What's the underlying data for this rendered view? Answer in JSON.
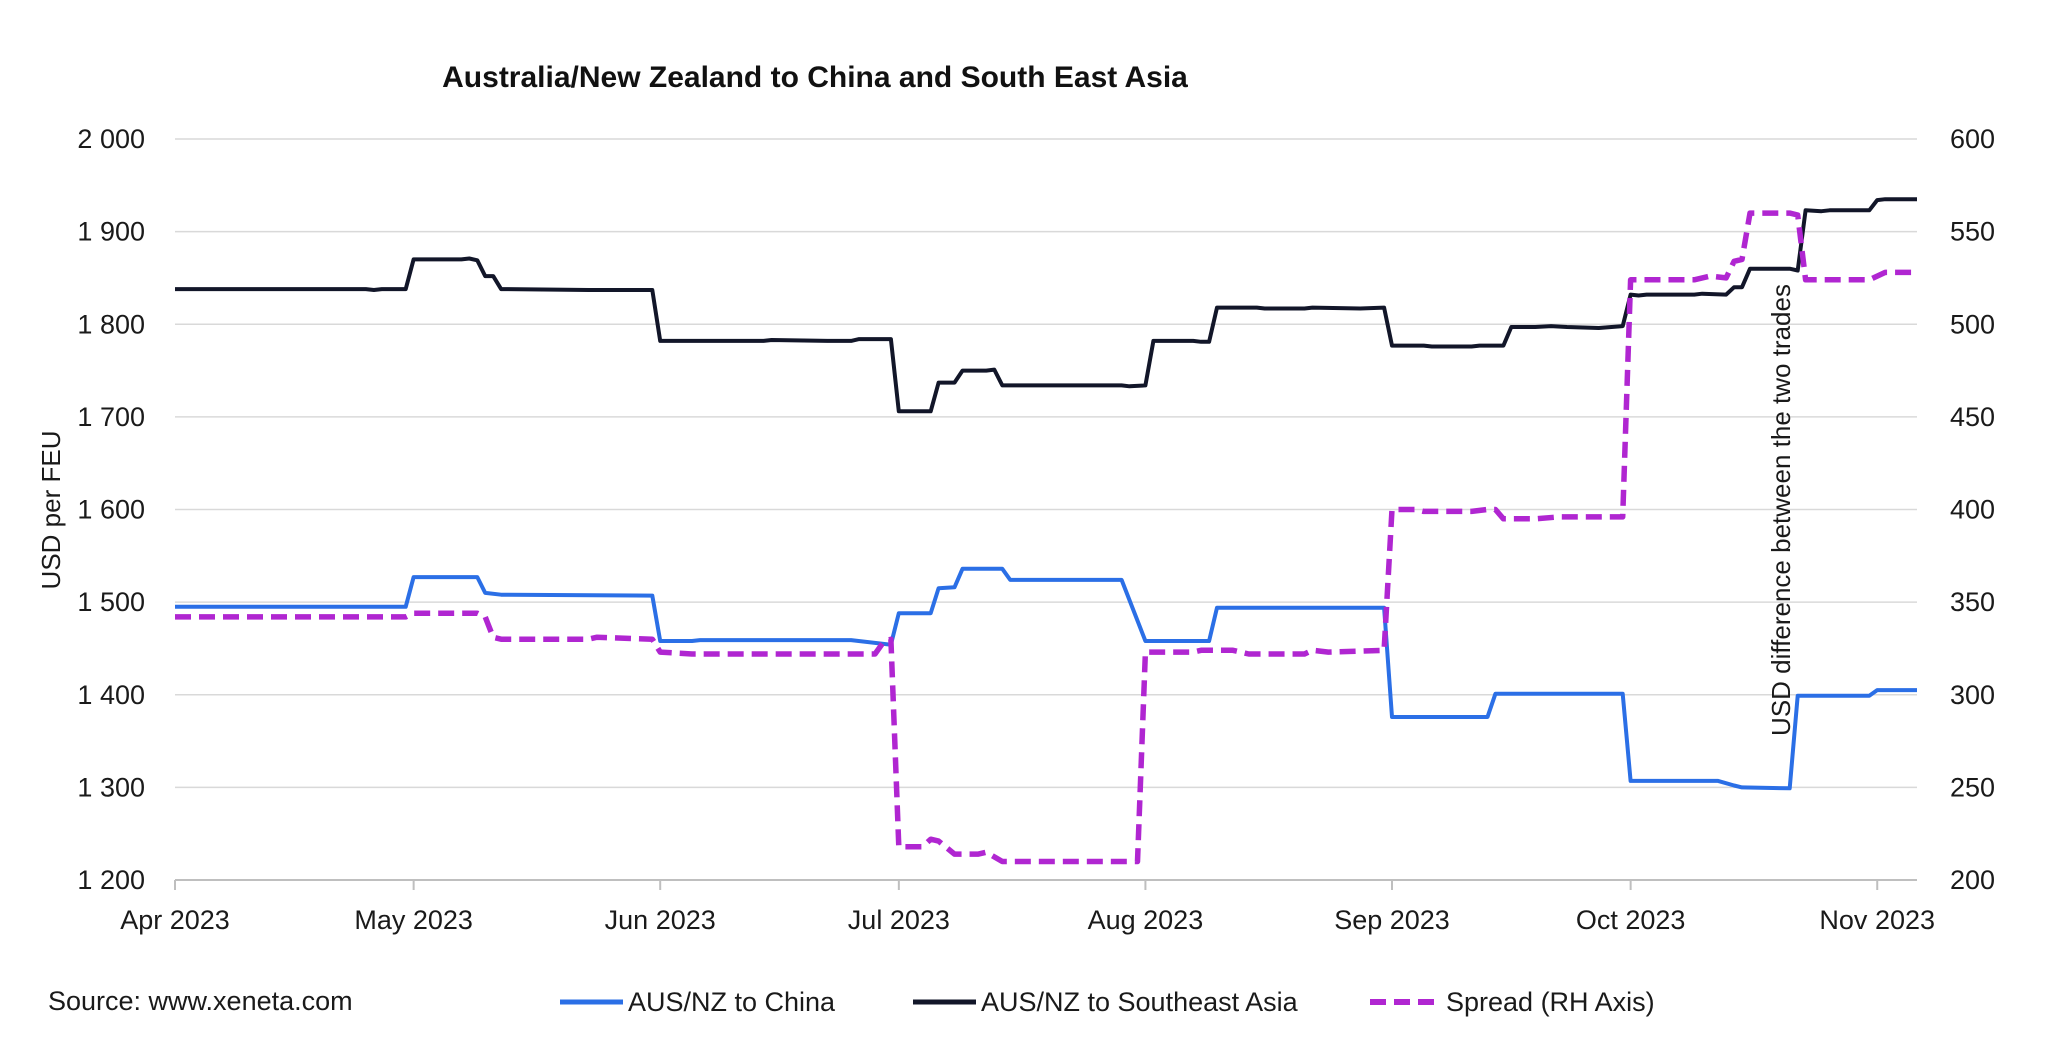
{
  "chart_data": {
    "type": "line",
    "title": "Australia/New Zealand to China and South East Asia",
    "source": "Source: www.xeneta.com",
    "y_left": {
      "label": "USD per FEU",
      "range": [
        1200,
        2000
      ],
      "ticks": [
        1200,
        1300,
        1400,
        1500,
        1600,
        1700,
        1800,
        1900,
        2000
      ],
      "tick_labels": [
        "1 200",
        "1 300",
        "1 400",
        "1 500",
        "1 600",
        "1 700",
        "1 800",
        "1 900",
        "2 000"
      ]
    },
    "y_right": {
      "label": "USD difference between the two trades",
      "range": [
        200,
        600
      ],
      "ticks": [
        200,
        250,
        300,
        350,
        400,
        450,
        500,
        550,
        600
      ],
      "tick_labels": [
        "200",
        "250",
        "300",
        "350",
        "400",
        "450",
        "500",
        "550",
        "600"
      ]
    },
    "x_axis": {
      "range": [
        "2023-04-01",
        "2023-11-06"
      ],
      "ticks": [
        "2023-04-01",
        "2023-05-01",
        "2023-06-01",
        "2023-07-01",
        "2023-08-01",
        "2023-09-01",
        "2023-10-01",
        "2023-11-01"
      ],
      "tick_labels": [
        "Apr 2023",
        "May 2023",
        "Jun 2023",
        "Jul 2023",
        "Aug 2023",
        "Sep 2023",
        "Oct 2023",
        "Nov 2023"
      ]
    },
    "grid": "horizontal",
    "legend_position": "bottom",
    "series": [
      {
        "name": "AUS/NZ to China",
        "axis": "left",
        "color": "#2B6FE6",
        "style": "solid",
        "points": [
          [
            "2023-04-01",
            1495
          ],
          [
            "2023-04-30",
            1495
          ],
          [
            "2023-05-01",
            1527
          ],
          [
            "2023-05-09",
            1527
          ],
          [
            "2023-05-10",
            1510
          ],
          [
            "2023-05-12",
            1508
          ],
          [
            "2023-05-31",
            1507
          ],
          [
            "2023-06-01",
            1458
          ],
          [
            "2023-06-05",
            1458
          ],
          [
            "2023-06-06",
            1459
          ],
          [
            "2023-06-25",
            1459
          ],
          [
            "2023-06-30",
            1454
          ],
          [
            "2023-07-01",
            1488
          ],
          [
            "2023-07-05",
            1488
          ],
          [
            "2023-07-06",
            1515
          ],
          [
            "2023-07-08",
            1516
          ],
          [
            "2023-07-09",
            1536
          ],
          [
            "2023-07-14",
            1536
          ],
          [
            "2023-07-15",
            1524
          ],
          [
            "2023-07-29",
            1524
          ],
          [
            "2023-08-01",
            1458
          ],
          [
            "2023-08-09",
            1458
          ],
          [
            "2023-08-10",
            1494
          ],
          [
            "2023-08-31",
            1494
          ],
          [
            "2023-09-01",
            1376
          ],
          [
            "2023-09-13",
            1376
          ],
          [
            "2023-09-14",
            1401
          ],
          [
            "2023-09-30",
            1401
          ],
          [
            "2023-10-01",
            1307
          ],
          [
            "2023-10-12",
            1307
          ],
          [
            "2023-10-14",
            1302
          ],
          [
            "2023-10-15",
            1300
          ],
          [
            "2023-10-21",
            1299
          ],
          [
            "2023-10-22",
            1399
          ],
          [
            "2023-10-31",
            1399
          ],
          [
            "2023-11-01",
            1405
          ],
          [
            "2023-11-06",
            1405
          ]
        ]
      },
      {
        "name": "AUS/NZ to Southeast Asia",
        "axis": "left",
        "color": "#121629",
        "style": "solid",
        "points": [
          [
            "2023-04-01",
            1838
          ],
          [
            "2023-04-25",
            1838
          ],
          [
            "2023-04-26",
            1837
          ],
          [
            "2023-04-27",
            1838
          ],
          [
            "2023-04-30",
            1838
          ],
          [
            "2023-05-01",
            1870
          ],
          [
            "2023-05-07",
            1870
          ],
          [
            "2023-05-08",
            1871
          ],
          [
            "2023-05-09",
            1869
          ],
          [
            "2023-05-10",
            1852
          ],
          [
            "2023-05-11",
            1852
          ],
          [
            "2023-05-12",
            1838
          ],
          [
            "2023-05-23",
            1837
          ],
          [
            "2023-05-31",
            1837
          ],
          [
            "2023-06-01",
            1782
          ],
          [
            "2023-06-14",
            1782
          ],
          [
            "2023-06-15",
            1783
          ],
          [
            "2023-06-22",
            1782
          ],
          [
            "2023-06-25",
            1782
          ],
          [
            "2023-06-26",
            1784
          ],
          [
            "2023-06-30",
            1784
          ],
          [
            "2023-07-01",
            1706
          ],
          [
            "2023-07-05",
            1706
          ],
          [
            "2023-07-06",
            1737
          ],
          [
            "2023-07-08",
            1737
          ],
          [
            "2023-07-09",
            1750
          ],
          [
            "2023-07-12",
            1750
          ],
          [
            "2023-07-13",
            1751
          ],
          [
            "2023-07-14",
            1734
          ],
          [
            "2023-07-29",
            1734
          ],
          [
            "2023-07-30",
            1733
          ],
          [
            "2023-08-01",
            1734
          ],
          [
            "2023-08-02",
            1782
          ],
          [
            "2023-08-07",
            1782
          ],
          [
            "2023-08-08",
            1781
          ],
          [
            "2023-08-09",
            1781
          ],
          [
            "2023-08-10",
            1818
          ],
          [
            "2023-08-15",
            1818
          ],
          [
            "2023-08-16",
            1817
          ],
          [
            "2023-08-21",
            1817
          ],
          [
            "2023-08-22",
            1818
          ],
          [
            "2023-08-28",
            1817
          ],
          [
            "2023-08-31",
            1818
          ],
          [
            "2023-09-01",
            1777
          ],
          [
            "2023-09-05",
            1777
          ],
          [
            "2023-09-06",
            1776
          ],
          [
            "2023-09-11",
            1776
          ],
          [
            "2023-09-12",
            1777
          ],
          [
            "2023-09-15",
            1777
          ],
          [
            "2023-09-16",
            1797
          ],
          [
            "2023-09-19",
            1797
          ],
          [
            "2023-09-21",
            1798
          ],
          [
            "2023-09-23",
            1797
          ],
          [
            "2023-09-27",
            1796
          ],
          [
            "2023-09-30",
            1798
          ],
          [
            "2023-10-01",
            1832
          ],
          [
            "2023-10-02",
            1831
          ],
          [
            "2023-10-03",
            1832
          ],
          [
            "2023-10-09",
            1832
          ],
          [
            "2023-10-10",
            1833
          ],
          [
            "2023-10-13",
            1832
          ],
          [
            "2023-10-14",
            1840
          ],
          [
            "2023-10-15",
            1840
          ],
          [
            "2023-10-16",
            1860
          ],
          [
            "2023-10-21",
            1860
          ],
          [
            "2023-10-22",
            1858
          ],
          [
            "2023-10-23",
            1923
          ],
          [
            "2023-10-25",
            1922
          ],
          [
            "2023-10-26",
            1923
          ],
          [
            "2023-10-31",
            1923
          ],
          [
            "2023-11-01",
            1934
          ],
          [
            "2023-11-02",
            1935
          ],
          [
            "2023-11-06",
            1935
          ]
        ]
      },
      {
        "name": "Spread (RH Axis)",
        "axis": "right",
        "color": "#B026D1",
        "style": "dashed",
        "points": [
          [
            "2023-04-01",
            342
          ],
          [
            "2023-04-30",
            342
          ],
          [
            "2023-05-01",
            344
          ],
          [
            "2023-05-09",
            344
          ],
          [
            "2023-05-10",
            342
          ],
          [
            "2023-05-11",
            331
          ],
          [
            "2023-05-12",
            330
          ],
          [
            "2023-05-23",
            330
          ],
          [
            "2023-05-24",
            331
          ],
          [
            "2023-05-31",
            330
          ],
          [
            "2023-06-01",
            323
          ],
          [
            "2023-06-05",
            322
          ],
          [
            "2023-06-25",
            322
          ],
          [
            "2023-06-28",
            322
          ],
          [
            "2023-06-29",
            328
          ],
          [
            "2023-06-30",
            330
          ],
          [
            "2023-07-01",
            218
          ],
          [
            "2023-07-04",
            218
          ],
          [
            "2023-07-05",
            222
          ],
          [
            "2023-07-06",
            221
          ],
          [
            "2023-07-08",
            214
          ],
          [
            "2023-07-11",
            214
          ],
          [
            "2023-07-12",
            215
          ],
          [
            "2023-07-14",
            210
          ],
          [
            "2023-07-31",
            210
          ],
          [
            "2023-08-01",
            323
          ],
          [
            "2023-08-07",
            323
          ],
          [
            "2023-08-08",
            324
          ],
          [
            "2023-08-12",
            324
          ],
          [
            "2023-08-14",
            322
          ],
          [
            "2023-08-21",
            322
          ],
          [
            "2023-08-22",
            324
          ],
          [
            "2023-08-24",
            323
          ],
          [
            "2023-08-31",
            324
          ],
          [
            "2023-09-01",
            400
          ],
          [
            "2023-09-04",
            400
          ],
          [
            "2023-09-05",
            399
          ],
          [
            "2023-09-11",
            399
          ],
          [
            "2023-09-13",
            400
          ],
          [
            "2023-09-14",
            400
          ],
          [
            "2023-09-15",
            395
          ],
          [
            "2023-09-19",
            395
          ],
          [
            "2023-09-22",
            396
          ],
          [
            "2023-09-30",
            396
          ],
          [
            "2023-10-01",
            524
          ],
          [
            "2023-10-09",
            524
          ],
          [
            "2023-10-11",
            526
          ],
          [
            "2023-10-13",
            525
          ],
          [
            "2023-10-14",
            534
          ],
          [
            "2023-10-15",
            535
          ],
          [
            "2023-10-16",
            560
          ],
          [
            "2023-10-21",
            560
          ],
          [
            "2023-10-22",
            559
          ],
          [
            "2023-10-23",
            524
          ],
          [
            "2023-10-31",
            524
          ],
          [
            "2023-11-01",
            526
          ],
          [
            "2023-11-02",
            528
          ],
          [
            "2023-11-06",
            528
          ]
        ]
      }
    ]
  }
}
